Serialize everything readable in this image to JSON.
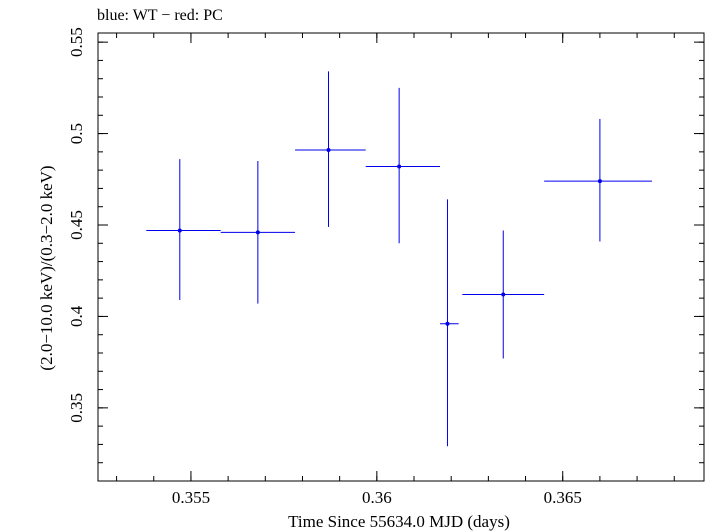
{
  "chart_data": {
    "type": "scatter",
    "title": "blue: WT − red: PC",
    "xlabel": "Time Since 55634.0 MJD (days)",
    "ylabel": "(2.0−10.0 keV)/(0.3−2.0 keV)",
    "xlim": [
      0.3525,
      0.3688
    ],
    "ylim": [
      0.31,
      0.555
    ],
    "x_ticks": [
      0.355,
      0.36,
      0.365
    ],
    "x_tick_labels": [
      "0.355",
      "0.36",
      "0.365"
    ],
    "y_ticks": [
      0.35,
      0.4,
      0.45,
      0.5,
      0.55
    ],
    "y_tick_labels": [
      "0.35",
      "0.4",
      "0.45",
      "0.5",
      "0.55"
    ],
    "series": [
      {
        "color": "#0000ee",
        "points": [
          {
            "x": 0.3547,
            "y": 0.447,
            "xlo": 0.3538,
            "xhi": 0.3558,
            "ylo": 0.409,
            "yhi": 0.486
          },
          {
            "x": 0.3568,
            "y": 0.446,
            "xlo": 0.3558,
            "xhi": 0.3578,
            "ylo": 0.407,
            "yhi": 0.485
          },
          {
            "x": 0.3587,
            "y": 0.491,
            "xlo": 0.3578,
            "xhi": 0.3597,
            "ylo": 0.449,
            "yhi": 0.534
          },
          {
            "x": 0.3606,
            "y": 0.482,
            "xlo": 0.3597,
            "xhi": 0.3617,
            "ylo": 0.44,
            "yhi": 0.525
          },
          {
            "x": 0.3619,
            "y": 0.396,
            "xlo": 0.3617,
            "xhi": 0.3622,
            "ylo": 0.329,
            "yhi": 0.464
          },
          {
            "x": 0.3634,
            "y": 0.412,
            "xlo": 0.3623,
            "xhi": 0.3645,
            "ylo": 0.377,
            "yhi": 0.447
          },
          {
            "x": 0.366,
            "y": 0.474,
            "xlo": 0.3645,
            "xhi": 0.3674,
            "ylo": 0.441,
            "yhi": 0.508
          }
        ]
      }
    ]
  }
}
